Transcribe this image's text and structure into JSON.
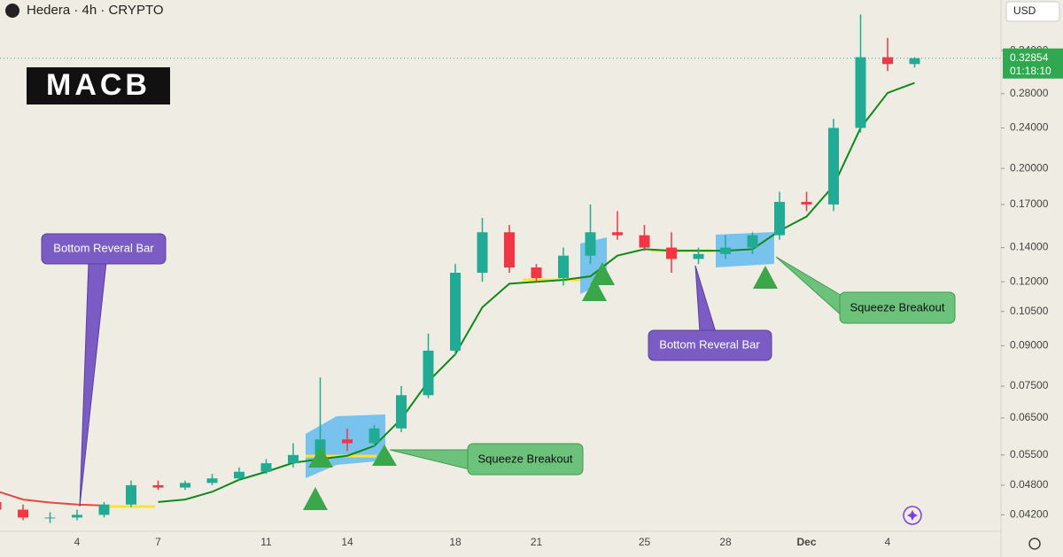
{
  "chart_data": {
    "type": "candlestick",
    "title": "Hedera · 4h · CRYPTO",
    "logo": "MACB",
    "currency": "USD",
    "last_price": 0.32854,
    "countdown": "01:18:10",
    "categories": [
      null,
      null,
      null,
      "4",
      null,
      null,
      "7",
      null,
      null,
      null,
      "11",
      null,
      null,
      "14",
      null,
      null,
      null,
      "18",
      null,
      null,
      "21",
      null,
      null,
      null,
      "25",
      null,
      null,
      "28",
      null,
      null,
      "Dec",
      null,
      null,
      "4",
      null
    ],
    "open": [
      0.0445,
      0.043,
      0.0415,
      0.0415,
      0.042,
      0.044,
      0.048,
      0.0475,
      0.0485,
      0.0495,
      0.051,
      0.053,
      0.055,
      0.059,
      0.058,
      0.062,
      0.072,
      0.088,
      0.125,
      0.15,
      0.128,
      0.122,
      0.135,
      0.15,
      0.148,
      0.14,
      0.133,
      0.136,
      0.14,
      0.148,
      0.172,
      0.17,
      0.24,
      0.33,
      0.32
    ],
    "high": [
      0.046,
      0.044,
      0.0425,
      0.043,
      0.0445,
      0.049,
      0.049,
      0.049,
      0.0505,
      0.052,
      0.054,
      0.058,
      0.078,
      0.062,
      0.063,
      0.075,
      0.095,
      0.13,
      0.16,
      0.155,
      0.13,
      0.14,
      0.17,
      0.165,
      0.155,
      0.15,
      0.14,
      0.148,
      0.15,
      0.18,
      0.18,
      0.25,
      0.4,
      0.36,
      0.33
    ],
    "low": [
      0.0425,
      0.041,
      0.0405,
      0.041,
      0.0415,
      0.0435,
      0.047,
      0.047,
      0.048,
      0.049,
      0.0505,
      0.052,
      0.054,
      0.056,
      0.057,
      0.061,
      0.071,
      0.086,
      0.12,
      0.125,
      0.12,
      0.118,
      0.13,
      0.145,
      0.138,
      0.125,
      0.13,
      0.133,
      0.136,
      0.145,
      0.165,
      0.165,
      0.235,
      0.31,
      0.315
    ],
    "close": [
      0.043,
      0.0415,
      0.0415,
      0.042,
      0.044,
      0.048,
      0.0475,
      0.0485,
      0.0495,
      0.051,
      0.053,
      0.055,
      0.059,
      0.058,
      0.062,
      0.072,
      0.088,
      0.125,
      0.15,
      0.128,
      0.122,
      0.135,
      0.15,
      0.148,
      0.14,
      0.133,
      0.136,
      0.14,
      0.148,
      0.172,
      0.17,
      0.24,
      0.33,
      0.32,
      0.32854
    ],
    "up_color": "#22ab94",
    "down_color": "#f23645",
    "lines": [
      {
        "color": "#e8473f",
        "values": [
          0.0468,
          0.045,
          0.0444,
          0.044,
          0.0438,
          null,
          null,
          null,
          null,
          null,
          null,
          null,
          null,
          null,
          null,
          null,
          null,
          null,
          null,
          null,
          null,
          null,
          null,
          null,
          null,
          null,
          null,
          null,
          null,
          null,
          null,
          null,
          null,
          null,
          null
        ]
      },
      {
        "color": "#0f8a1a",
        "values": [
          null,
          null,
          null,
          null,
          null,
          null,
          0.0445,
          0.045,
          0.0466,
          0.0492,
          0.051,
          0.0531,
          0.054,
          0.0548,
          0.0573,
          0.0647,
          0.0766,
          0.0866,
          0.107,
          0.119,
          0.12,
          0.121,
          0.123,
          0.135,
          0.139,
          0.138,
          0.138,
          0.138,
          0.139,
          0.151,
          0.161,
          0.185,
          0.24,
          0.281,
          0.294
        ]
      }
    ],
    "log_scale": true,
    "ylim": [
      0.039,
      0.427
    ],
    "yticks": [
      {
        "value": 0.042,
        "label": "0.04200"
      },
      {
        "value": 0.048,
        "label": "0.04800"
      },
      {
        "value": 0.055,
        "label": "0.05500"
      },
      {
        "value": 0.065,
        "label": "0.06500"
      },
      {
        "value": 0.075,
        "label": "0.07500"
      },
      {
        "value": 0.09,
        "label": "0.09000"
      },
      {
        "value": 0.105,
        "label": "0.10500"
      },
      {
        "value": 0.12,
        "label": "0.12000"
      },
      {
        "value": 0.14,
        "label": "0.14000"
      },
      {
        "value": 0.17,
        "label": "0.17000"
      },
      {
        "value": 0.2,
        "label": "0.20000"
      },
      {
        "value": 0.24,
        "label": "0.24000"
      },
      {
        "value": 0.28,
        "label": "0.28000"
      },
      {
        "value": 0.34,
        "label": "0.34000"
      }
    ],
    "annotations": [
      "Bottom Reveral Bar",
      "Bottom Reveral Bar",
      "Squeeze Breakout",
      "Squeeze Breakout"
    ]
  }
}
